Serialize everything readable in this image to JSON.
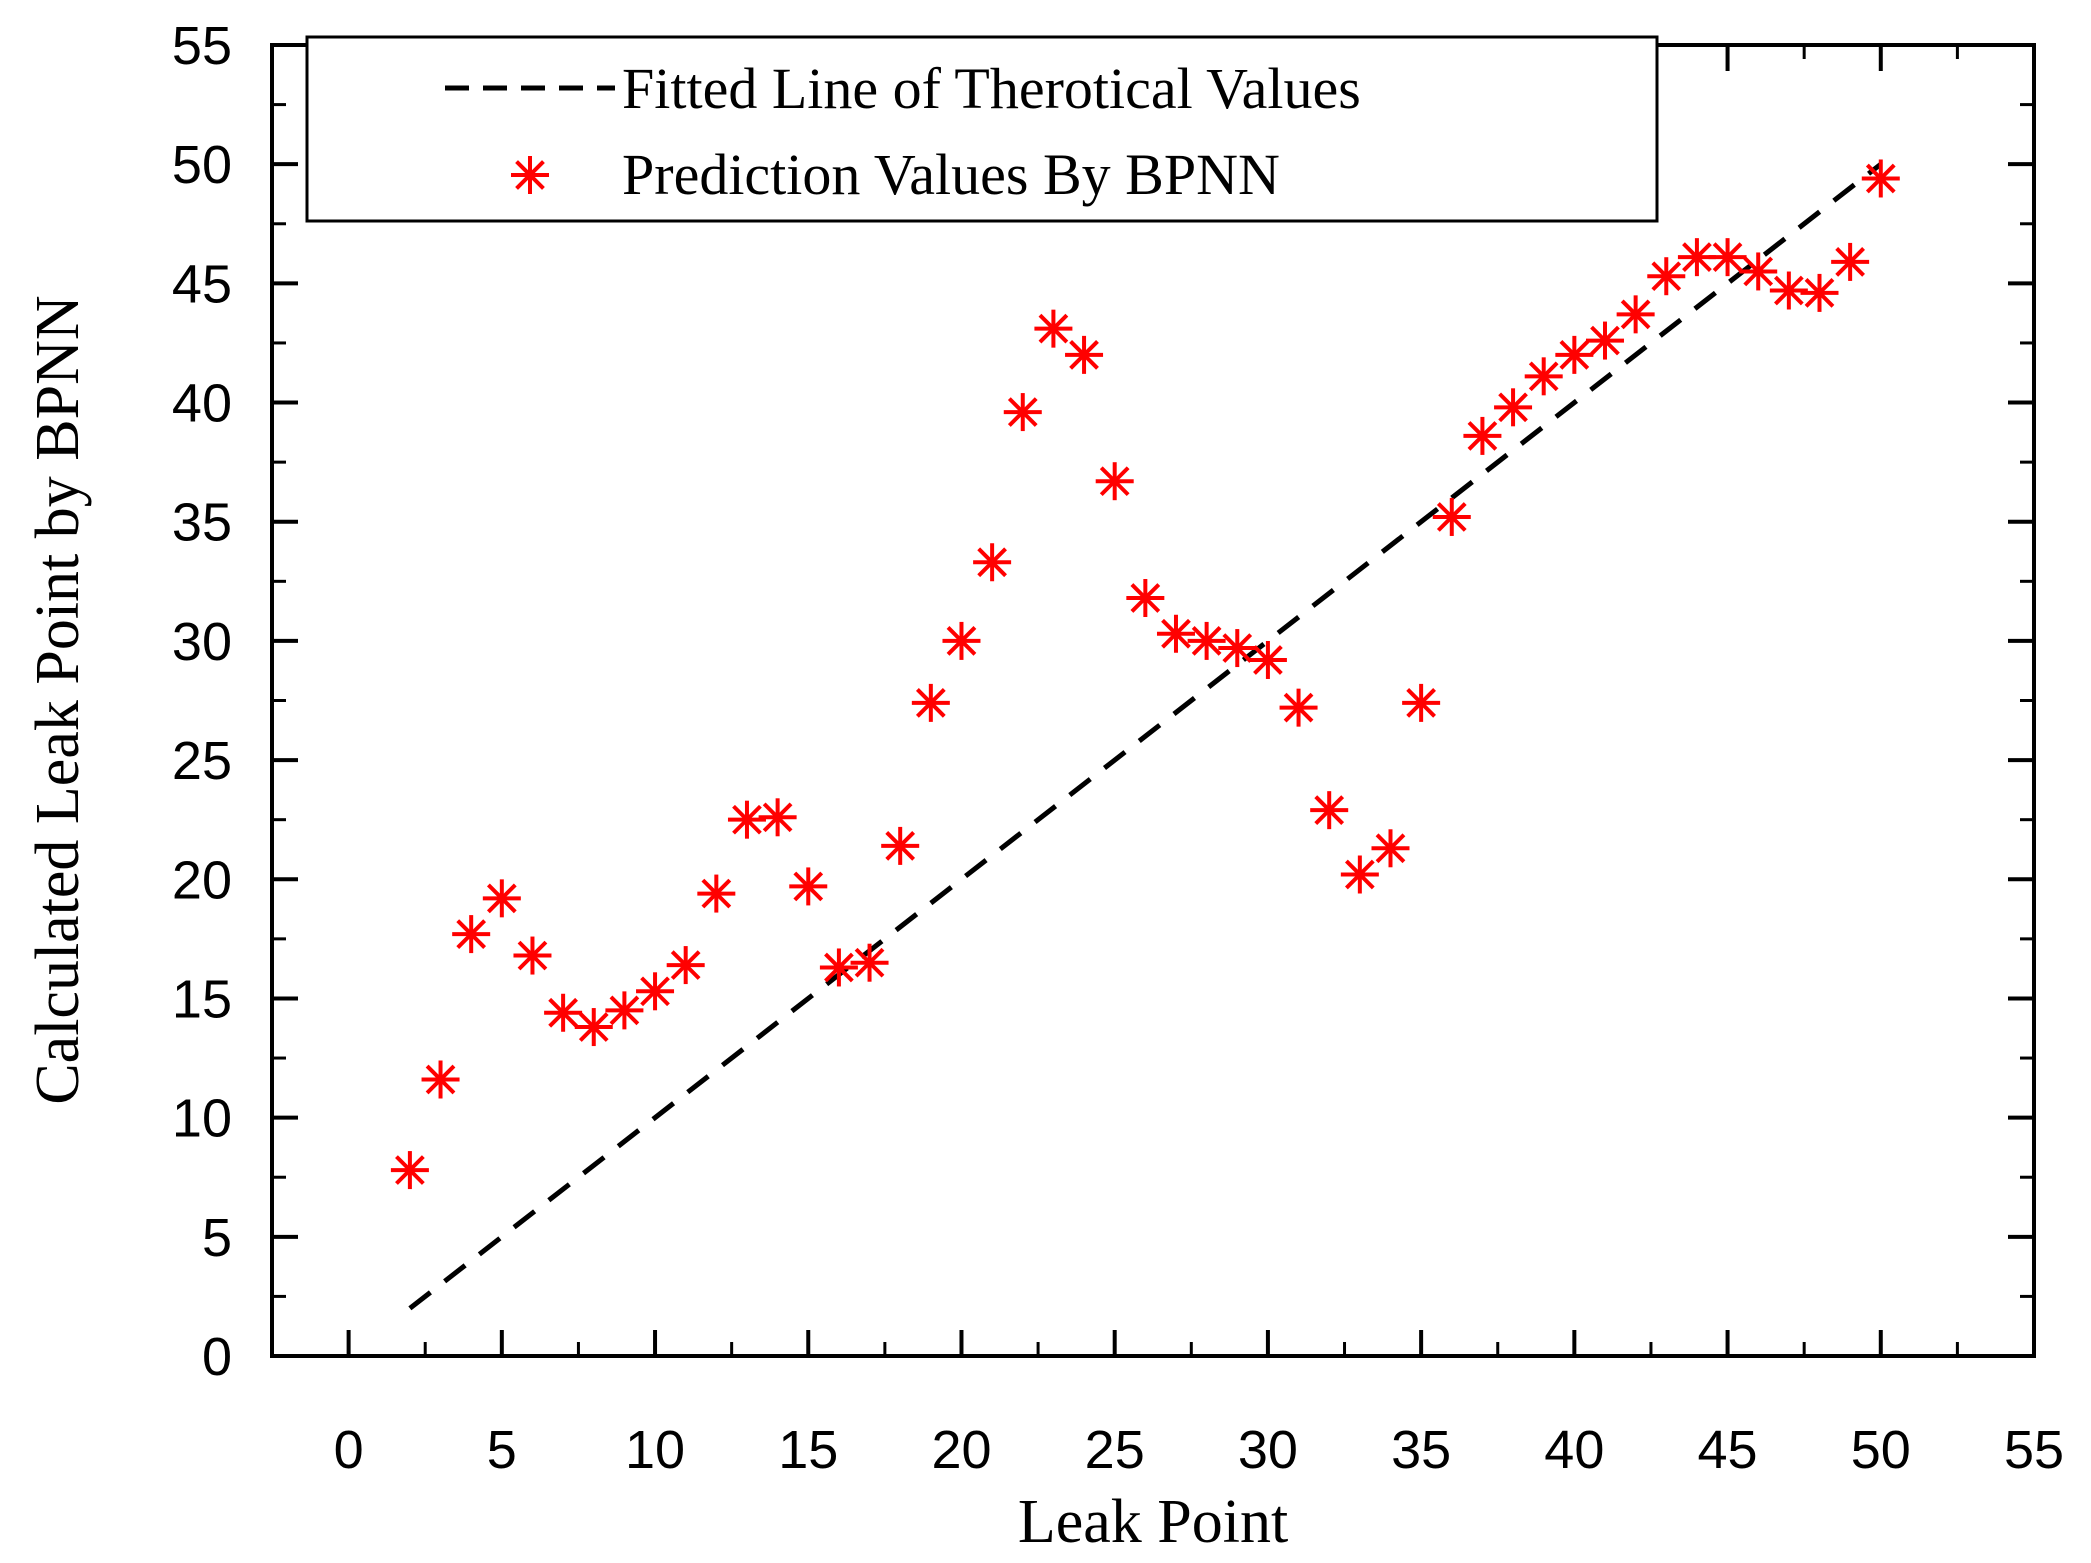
{
  "chart_data": {
    "type": "scatter",
    "title": "",
    "xlabel": "Leak Point",
    "ylabel": "Calculated Leak Point by BPNN",
    "xlim": [
      -2.5,
      55
    ],
    "ylim": [
      0,
      55
    ],
    "xticks": [
      0,
      5,
      10,
      15,
      20,
      25,
      30,
      35,
      40,
      45,
      50,
      55
    ],
    "yticks": [
      0,
      5,
      10,
      15,
      20,
      25,
      30,
      35,
      40,
      45,
      50,
      55
    ],
    "grid": false,
    "legend_position": "top",
    "series": [
      {
        "name": "Fitted Line of Therotical Values",
        "kind": "line",
        "style": "dashed",
        "color": "#000000",
        "x": [
          2,
          50
        ],
        "y": [
          2,
          50
        ]
      },
      {
        "name": "Prediction Values By BPNN",
        "kind": "scatter",
        "marker": "asterisk",
        "color": "#ff0000",
        "x": [
          2,
          3,
          4,
          5,
          6,
          7,
          8,
          9,
          10,
          11,
          12,
          13,
          14,
          15,
          16,
          17,
          18,
          19,
          20,
          21,
          22,
          23,
          24,
          25,
          26,
          27,
          28,
          29,
          30,
          31,
          32,
          33,
          34,
          35,
          36,
          37,
          38,
          39,
          40,
          41,
          42,
          43,
          44,
          45,
          46,
          47,
          48,
          49,
          50
        ],
        "y": [
          7.8,
          11.6,
          17.7,
          19.2,
          16.8,
          14.4,
          13.8,
          14.5,
          15.3,
          16.4,
          19.4,
          22.5,
          22.6,
          19.7,
          16.3,
          16.5,
          21.4,
          27.4,
          30.0,
          33.3,
          39.6,
          43.1,
          42.0,
          36.7,
          31.8,
          30.3,
          30.0,
          29.7,
          29.2,
          27.2,
          22.9,
          20.2,
          21.3,
          27.4,
          35.2,
          38.6,
          39.8,
          41.1,
          42.0,
          42.6,
          43.7,
          45.3,
          46.1,
          46.1,
          45.5,
          44.7,
          44.6,
          45.9,
          49.4
        ]
      }
    ]
  }
}
